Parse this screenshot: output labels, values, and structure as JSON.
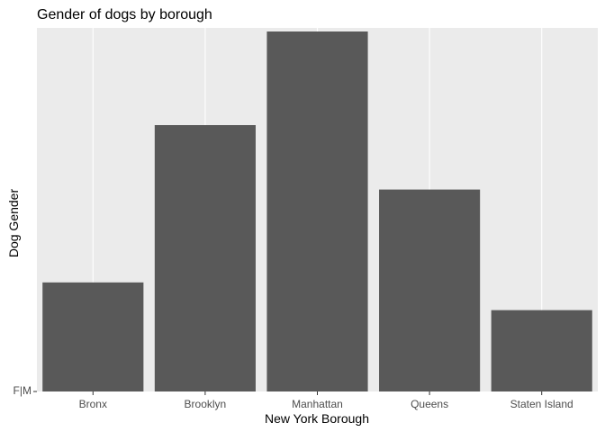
{
  "chart_data": {
    "type": "bar",
    "title": "Gender of dogs by borough",
    "xlabel": "New York Borough",
    "ylabel": "Dog Gender",
    "categories": [
      "Bronx",
      "Brooklyn",
      "Manhattan",
      "Queens",
      "Staten Island"
    ],
    "values": [
      30.3,
      74.0,
      100.0,
      56.1,
      22.6
    ],
    "ylim": [
      0,
      100
    ],
    "y_tick_labels": [
      "F|M"
    ],
    "grid": true,
    "legend": "none",
    "bar_color": "#595959",
    "panel_background": "#ebebeb",
    "grid_color": "#ffffff"
  }
}
